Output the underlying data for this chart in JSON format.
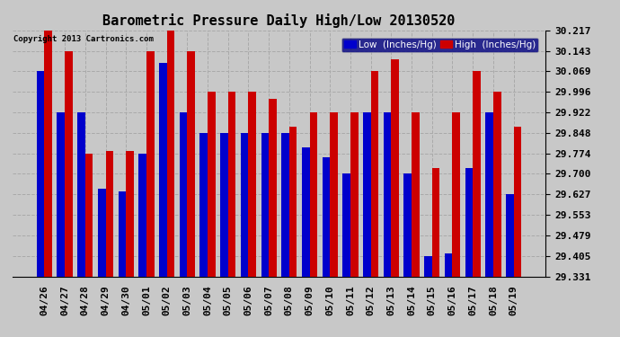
{
  "title": "Barometric Pressure Daily High/Low 20130520",
  "copyright": "Copyright 2013 Cartronics.com",
  "legend_low": "Low  (Inches/Hg)",
  "legend_high": "High  (Inches/Hg)",
  "categories": [
    "04/26",
    "04/27",
    "04/28",
    "04/29",
    "04/30",
    "05/01",
    "05/02",
    "05/03",
    "05/04",
    "05/05",
    "05/06",
    "05/07",
    "05/08",
    "05/09",
    "05/10",
    "05/11",
    "05/12",
    "05/13",
    "05/14",
    "05/15",
    "05/16",
    "05/17",
    "05/18",
    "05/19"
  ],
  "low_values": [
    30.069,
    29.922,
    29.922,
    29.648,
    29.637,
    29.774,
    30.1,
    29.922,
    29.848,
    29.848,
    29.848,
    29.848,
    29.848,
    29.795,
    29.76,
    29.7,
    29.922,
    29.922,
    29.7,
    29.405,
    29.415,
    29.72,
    29.922,
    29.627
  ],
  "high_values": [
    30.217,
    30.143,
    29.774,
    29.784,
    29.784,
    30.143,
    30.217,
    30.143,
    29.996,
    29.996,
    29.996,
    29.97,
    29.87,
    29.922,
    29.922,
    29.922,
    30.069,
    30.113,
    29.922,
    29.72,
    29.922,
    30.069,
    29.996,
    29.87
  ],
  "ylim_min": 29.331,
  "ylim_max": 30.217,
  "yticks": [
    29.331,
    29.405,
    29.479,
    29.553,
    29.627,
    29.7,
    29.774,
    29.848,
    29.922,
    29.996,
    30.069,
    30.143,
    30.217
  ],
  "low_color": "#0000cc",
  "high_color": "#cc0000",
  "bg_color": "#c8c8c8",
  "grid_color": "#aaaaaa",
  "bar_width": 0.38,
  "title_fontsize": 11,
  "tick_fontsize": 8,
  "legend_fontsize": 7.5
}
